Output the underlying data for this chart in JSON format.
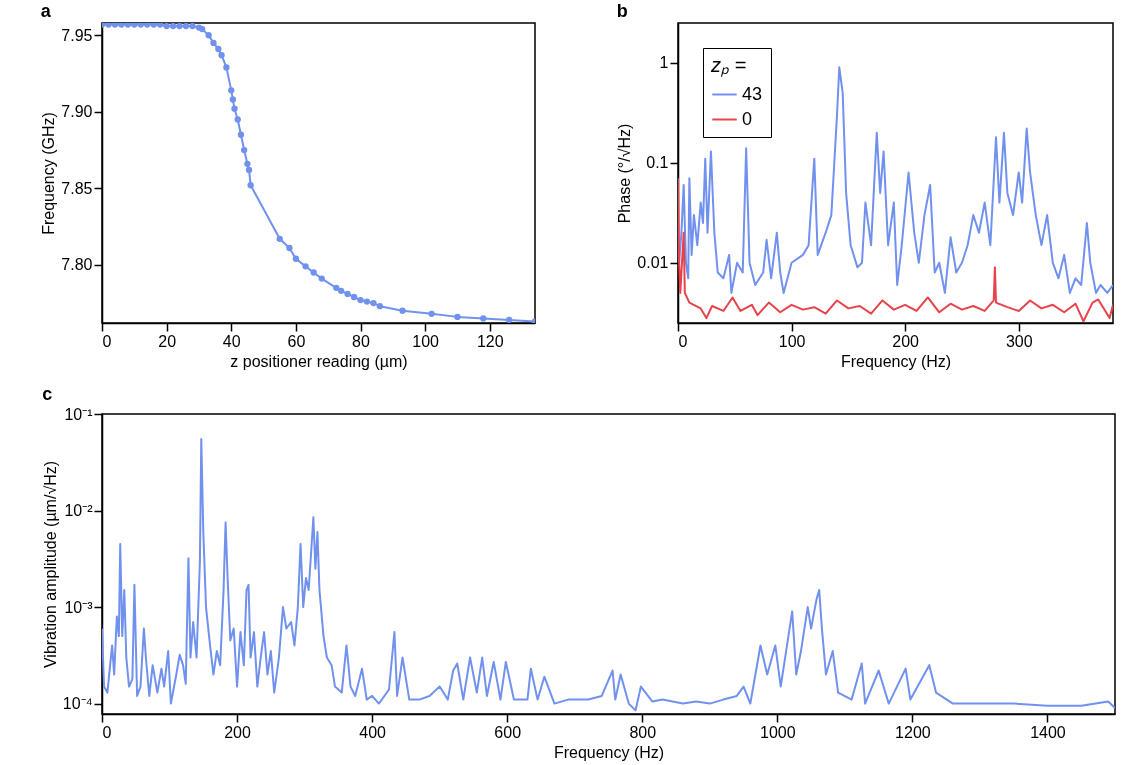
{
  "chart_data": [
    {
      "type": "line",
      "title": "a",
      "xlabel": "z positioner reading (µm)",
      "ylabel": "Frequency (GHz)",
      "marker": "circle",
      "grid": false,
      "legend": false,
      "xlim": [
        0,
        134
      ],
      "ylim": [
        7.762,
        7.958
      ],
      "xticks": [
        0,
        20,
        40,
        60,
        80,
        100,
        120
      ],
      "yticks": [
        {
          "value": 7.8,
          "label": "7.80"
        },
        7.85,
        {
          "value": 7.9,
          "label": "7.90"
        },
        7.95
      ],
      "series": [
        {
          "color": "#7191ef",
          "x": [
            0,
            2,
            4,
            6,
            8,
            10,
            12,
            14,
            16,
            18,
            20,
            22,
            24,
            26,
            28,
            30,
            31,
            33,
            34.5,
            36,
            37,
            38.5,
            40,
            40.5,
            41,
            42,
            43,
            44,
            45,
            45.5,
            46,
            55,
            58,
            60,
            63,
            65.5,
            68,
            72.5,
            74,
            76,
            78,
            80,
            82,
            84,
            86,
            93,
            102,
            110,
            118,
            126,
            134
          ],
          "values": [
            7.957,
            7.957,
            7.957,
            7.957,
            7.957,
            7.957,
            7.957,
            7.957,
            7.957,
            7.957,
            7.956,
            7.956,
            7.956,
            7.956,
            7.956,
            7.955,
            7.954,
            7.95,
            7.945,
            7.941,
            7.937,
            7.929,
            7.914,
            7.908,
            7.902,
            7.895,
            7.885,
            7.875,
            7.866,
            7.862,
            7.852,
            7.817,
            7.811,
            7.804,
            7.799,
            7.795,
            7.791,
            7.785,
            7.783,
            7.781,
            7.779,
            7.777,
            7.776,
            7.775,
            7.773,
            7.77,
            7.768,
            7.766,
            7.765,
            7.764,
            7.763
          ]
        }
      ]
    },
    {
      "type": "line",
      "title": "b",
      "xlabel": "Frequency (Hz)",
      "ylabel": "Phase (°/√Hz)",
      "legend_title": "zₚ =",
      "legend": "top left",
      "log": "y",
      "grid": false,
      "marker": "none",
      "xlim": [
        0,
        383
      ],
      "ylim": [
        0.0025,
        2.5
      ],
      "xticks": [
        0,
        100,
        200,
        300
      ],
      "yticks": [
        0.01,
        0.1,
        1
      ],
      "series": [
        {
          "name": "43",
          "color": "#7191ef",
          "x": [
            1,
            3,
            5,
            7,
            9,
            10,
            12,
            14,
            17,
            20,
            22,
            24,
            26,
            29,
            32,
            35,
            40,
            45,
            47,
            52,
            57,
            60,
            63,
            68,
            75,
            78,
            82,
            87,
            90,
            93,
            100,
            110,
            115,
            120,
            123,
            130,
            135,
            140,
            142,
            145,
            148,
            152,
            158,
            162,
            165,
            170,
            175,
            178,
            181,
            185,
            190,
            193,
            197,
            203,
            208,
            212,
            217,
            222,
            226,
            230,
            235,
            240,
            245,
            250,
            255,
            260,
            265,
            270,
            275,
            280,
            283,
            287,
            290,
            295,
            300,
            303,
            307,
            310,
            315,
            320,
            325,
            330,
            335,
            340,
            345,
            350,
            355,
            360,
            363,
            368,
            372,
            378,
            383
          ],
          "values": [
            0.01,
            0.02,
            0.06,
            0.01,
            0.007,
            0.07,
            0.012,
            0.03,
            0.015,
            0.04,
            0.025,
            0.11,
            0.02,
            0.13,
            0.02,
            0.008,
            0.007,
            0.012,
            0.005,
            0.01,
            0.008,
            0.14,
            0.01,
            0.006,
            0.008,
            0.017,
            0.007,
            0.02,
            0.008,
            0.005,
            0.01,
            0.012,
            0.015,
            0.11,
            0.012,
            0.02,
            0.03,
            0.3,
            0.9,
            0.5,
            0.05,
            0.015,
            0.009,
            0.01,
            0.04,
            0.015,
            0.2,
            0.05,
            0.13,
            0.015,
            0.04,
            0.006,
            0.015,
            0.08,
            0.02,
            0.01,
            0.03,
            0.06,
            0.008,
            0.01,
            0.005,
            0.018,
            0.008,
            0.01,
            0.015,
            0.03,
            0.02,
            0.04,
            0.015,
            0.18,
            0.04,
            0.2,
            0.05,
            0.03,
            0.08,
            0.04,
            0.22,
            0.08,
            0.03,
            0.015,
            0.03,
            0.01,
            0.007,
            0.012,
            0.005,
            0.007,
            0.006,
            0.025,
            0.01,
            0.005,
            0.006,
            0.005,
            0.006
          ]
        },
        {
          "name": "0",
          "color": "#e8434a",
          "x": [
            0,
            1,
            2,
            5,
            6,
            10,
            20,
            25,
            30,
            40,
            48,
            55,
            65,
            70,
            80,
            90,
            100,
            110,
            120,
            130,
            140,
            150,
            160,
            170,
            180,
            190,
            200,
            210,
            220,
            230,
            240,
            250,
            260,
            270,
            278,
            279,
            280,
            290,
            300,
            310,
            320,
            330,
            340,
            350,
            357,
            365,
            370,
            380,
            383
          ],
          "values": [
            0.07,
            0.01,
            0.005,
            0.02,
            0.005,
            0.004,
            0.0035,
            0.0028,
            0.0037,
            0.0033,
            0.0045,
            0.0033,
            0.0038,
            0.003,
            0.004,
            0.0032,
            0.0038,
            0.0034,
            0.0036,
            0.0031,
            0.0042,
            0.0035,
            0.0037,
            0.0031,
            0.0042,
            0.0034,
            0.0038,
            0.0033,
            0.0045,
            0.0032,
            0.0039,
            0.0034,
            0.0037,
            0.0033,
            0.0042,
            0.009,
            0.004,
            0.0036,
            0.0033,
            0.0042,
            0.0035,
            0.0038,
            0.0032,
            0.0039,
            0.0026,
            0.004,
            0.0043,
            0.0028,
            0.0038
          ]
        }
      ]
    },
    {
      "type": "line",
      "title": "c",
      "xlabel": "Frequency (Hz)",
      "ylabel": "Vibration amplitude (µm/√Hz)",
      "log": "y",
      "grid": false,
      "legend": false,
      "marker": "none",
      "xlim": [
        0,
        1500
      ],
      "ylim": [
        7.8e-05,
        0.1
      ],
      "xticks": [
        0,
        200,
        400,
        600,
        800,
        1000,
        1200,
        1400
      ],
      "yticks": [
        {
          "value": 0.0001,
          "label": "10⁻⁴"
        },
        {
          "value": 0.001,
          "label": "10⁻³"
        },
        {
          "value": 0.01,
          "label": "10⁻²"
        },
        {
          "value": 0.1,
          "label": "10⁻¹"
        }
      ],
      "series": [
        {
          "color": "#7191ef",
          "x": [
            0,
            3,
            8,
            12,
            15,
            18,
            22,
            25,
            27,
            30,
            33,
            36,
            40,
            45,
            48,
            52,
            57,
            62,
            65,
            70,
            75,
            82,
            88,
            92,
            98,
            102,
            110,
            115,
            120,
            124,
            128,
            131,
            135,
            140,
            145,
            147,
            150,
            154,
            160,
            165,
            170,
            175,
            180,
            183,
            186,
            190,
            195,
            200,
            205,
            210,
            214,
            217,
            220,
            225,
            230,
            235,
            240,
            245,
            250,
            255,
            262,
            268,
            273,
            280,
            285,
            290,
            294,
            298,
            302,
            306,
            310,
            313,
            316,
            319,
            322,
            328,
            333,
            340,
            345,
            355,
            362,
            368,
            375,
            385,
            392,
            400,
            410,
            425,
            433,
            437,
            445,
            455,
            470,
            485,
            500,
            512,
            520,
            526,
            535,
            545,
            555,
            563,
            570,
            580,
            590,
            598,
            610,
            630,
            635,
            645,
            655,
            670,
            690,
            700,
            720,
            740,
            756,
            760,
            768,
            780,
            790,
            798,
            815,
            830,
            860,
            880,
            900,
            920,
            940,
            950,
            960,
            975,
            985,
            997,
            1005,
            1022,
            1028,
            1035,
            1045,
            1050,
            1058,
            1062,
            1066,
            1072,
            1082,
            1090,
            1110,
            1125,
            1130,
            1150,
            1165,
            1190,
            1197,
            1225,
            1235,
            1260,
            1300,
            1350,
            1400,
            1450,
            1490,
            1500
          ],
          "values": [
            0.0006,
            0.00015,
            0.00013,
            0.00025,
            0.0004,
            0.0002,
            0.0008,
            0.0005,
            0.0045,
            0.0005,
            0.0015,
            0.0003,
            0.00015,
            0.00018,
            0.0017,
            0.00012,
            0.00015,
            0.0006,
            0.0003,
            0.00012,
            0.00025,
            0.00013,
            0.00023,
            0.00015,
            0.00035,
            0.0001,
            0.0002,
            0.00032,
            0.00025,
            0.00016,
            0.0032,
            0.0003,
            0.0007,
            0.0003,
            0.003,
            0.055,
            0.006,
            0.001,
            0.0004,
            0.0002,
            0.00035,
            0.00025,
            0.0015,
            0.0075,
            0.002,
            0.00045,
            0.0006,
            0.00015,
            0.00055,
            0.00025,
            0.0015,
            0.0017,
            0.0003,
            0.00055,
            0.00015,
            0.0003,
            0.00055,
            0.0002,
            0.00035,
            0.00013,
            0.0003,
            0.001,
            0.0006,
            0.0007,
            0.0004,
            0.001,
            0.0045,
            0.001,
            0.002,
            0.0015,
            0.004,
            0.0085,
            0.0025,
            0.006,
            0.0015,
            0.0005,
            0.0003,
            0.00025,
            0.00015,
            0.00013,
            0.0004,
            0.00015,
            0.00012,
            0.00023,
            0.00011,
            0.00012,
            0.0001,
            0.00014,
            0.00055,
            0.00012,
            0.0003,
            0.00011,
            0.00011,
            0.00012,
            0.00015,
            0.00011,
            0.00022,
            0.00026,
            0.00011,
            0.0003,
            0.00013,
            0.0003,
            0.00012,
            0.00027,
            0.00011,
            0.00027,
            0.00011,
            0.00011,
            0.00023,
            0.00011,
            0.00019,
            0.0001,
            0.00011,
            0.00011,
            0.00011,
            0.00012,
            0.00022,
            0.00011,
            0.0002,
            0.0001,
            8.5e-05,
            0.00015,
            0.000105,
            0.00011,
            0.0001,
            0.000105,
            0.0001,
            0.00011,
            0.00012,
            0.00015,
            0.0001,
            0.0004,
            0.0002,
            0.0004,
            0.00015,
            0.0009,
            0.0002,
            0.00035,
            0.001,
            0.0006,
            0.0012,
            0.0015,
            0.0006,
            0.0002,
            0.00035,
            0.00013,
            0.00011,
            0.00026,
            0.0001,
            0.00022,
            0.0001,
            0.00023,
            0.00011,
            0.00025,
            0.00013,
            0.0001,
            0.0001,
            0.0001,
            9.5e-05,
            9.5e-05,
            0.000105,
            9e-05
          ]
        }
      ]
    }
  ]
}
